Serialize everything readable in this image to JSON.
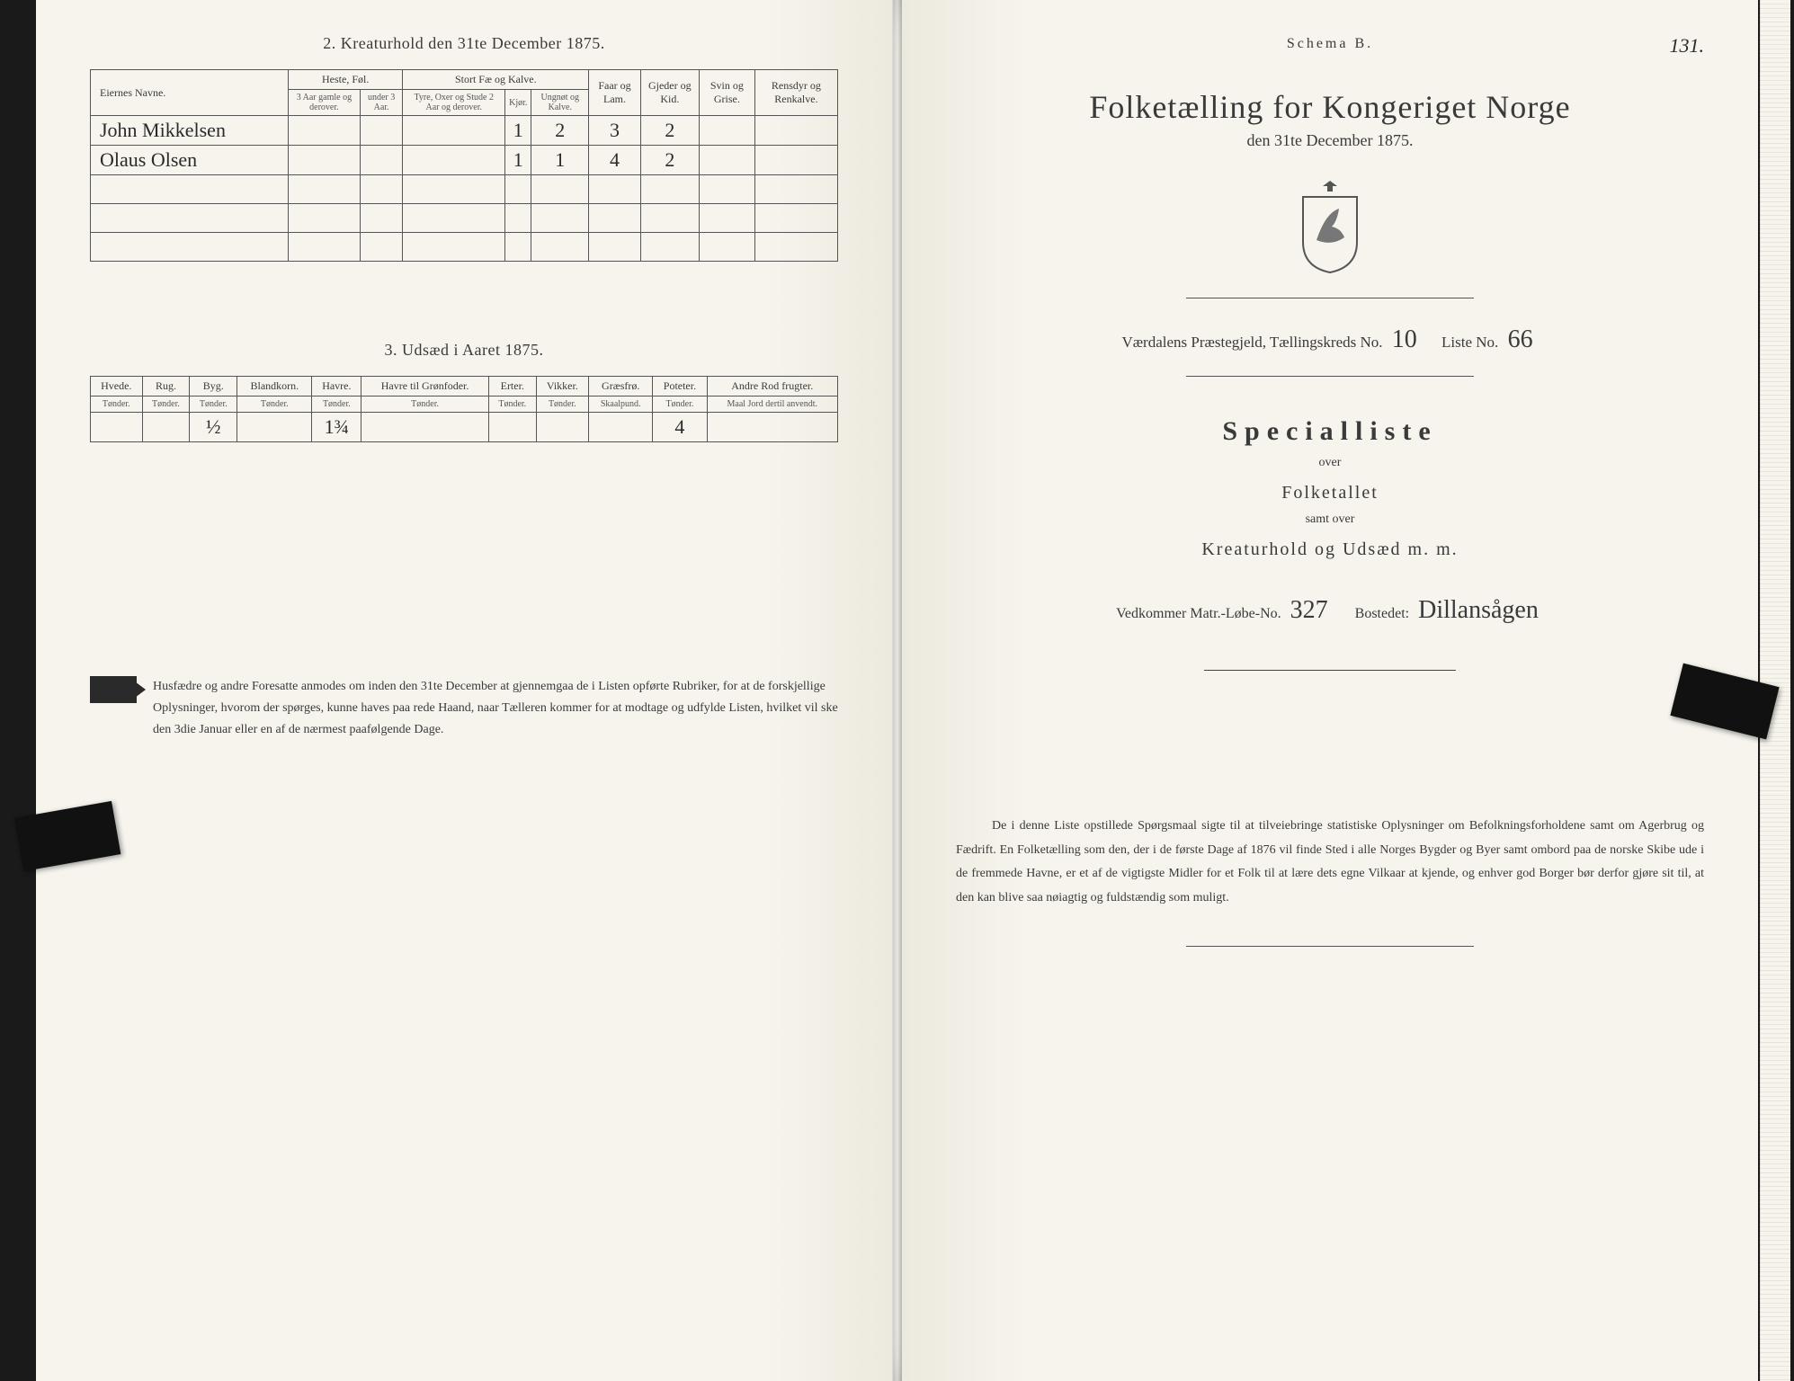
{
  "page_number": "131.",
  "left": {
    "section2_title": "2.  Kreaturhold den 31te December 1875.",
    "tbl2": {
      "col_owner": "Eiernes Navne.",
      "grp_horse": "Heste, Føl.",
      "horse_a": "3 Aar gamle og derover.",
      "horse_b": "under 3 Aar.",
      "grp_cattle": "Stort Fæ og Kalve.",
      "cattle_a": "Tyre, Oxer og Stude 2 Aar og derover.",
      "cattle_b": "Kjør.",
      "cattle_c": "Ungnøt og Kalve.",
      "sheep": "Faar og Lam.",
      "goat": "Gjeder og Kid.",
      "pig": "Svin og Grise.",
      "reindeer": "Rensdyr og Renkalve.",
      "rows": [
        {
          "name": "John Mikkelsen",
          "v": [
            "",
            "",
            "",
            "1",
            "2",
            "3",
            "2",
            "",
            ""
          ]
        },
        {
          "name": "Olaus Olsen",
          "v": [
            "",
            "",
            "",
            "1",
            "1",
            "4",
            "2",
            "",
            ""
          ]
        }
      ]
    },
    "section3_title": "3.  Udsæd i Aaret 1875.",
    "tbl3": {
      "heads": [
        "Hvede.",
        "Rug.",
        "Byg.",
        "Blandkorn.",
        "Havre.",
        "Havre til Grønfoder.",
        "Erter.",
        "Vikker.",
        "Græsfrø.",
        "Poteter.",
        "Andre Rod frugter."
      ],
      "units": [
        "Tønder.",
        "Tønder.",
        "Tønder.",
        "Tønder.",
        "Tønder.",
        "Tønder.",
        "Tønder.",
        "Tønder.",
        "Skaalpund.",
        "Tønder.",
        "Maal Jord dertil anvendt."
      ],
      "row": [
        "",
        "",
        "½",
        "",
        "1¾",
        "",
        "",
        "",
        "",
        "4",
        ""
      ]
    },
    "instr": "Husfædre og andre Foresatte anmodes om inden den 31te December at gjennemgaa de i Listen opførte Rubriker, for at de forskjellige Oplysninger, hvorom der spørges, kunne haves paa rede Haand, naar Tælleren kommer for at modtage og udfylde Listen, hvilket vil ske den 3die Januar eller en af de nærmest paafølgende Dage."
  },
  "right": {
    "schema": "Schema B.",
    "title": "Folketælling for Kongeriget Norge",
    "date": "den 31te December 1875.",
    "parish_label": "Værdalens Præstegjeld, Tællingskreds No.",
    "kreds_no": "10",
    "list_label": "Liste No.",
    "list_no": "66",
    "special": "Specialliste",
    "over": "over",
    "folketal": "Folketallet",
    "samt": "samt over",
    "kreatur": "Kreaturhold og Udsæd m. m.",
    "matr_label": "Vedkommer Matr.-Løbe-No.",
    "matr_no": "327",
    "bosted_label": "Bostedet:",
    "bosted": "Dillansågen",
    "para": "De i denne Liste opstillede Spørgsmaal sigte til at tilveiebringe statistiske Oplysninger om Befolkningsforholdene samt om Agerbrug og Fædrift. En Folketælling som den, der i de første Dage af 1876 vil finde Sted i alle Norges Bygder og Byer samt ombord paa de norske Skibe ude i de fremmede Havne, er et af de vigtigste Midler for et Folk til at lære dets egne Vilkaar at kjende, og enhver god Borger bør derfor gjøre sit til, at den kan blive saa nøiagtig og fuldstændig som muligt."
  },
  "colors": {
    "paper": "#f5f3ec",
    "ink": "#3a3a3a",
    "rule": "#555555"
  }
}
